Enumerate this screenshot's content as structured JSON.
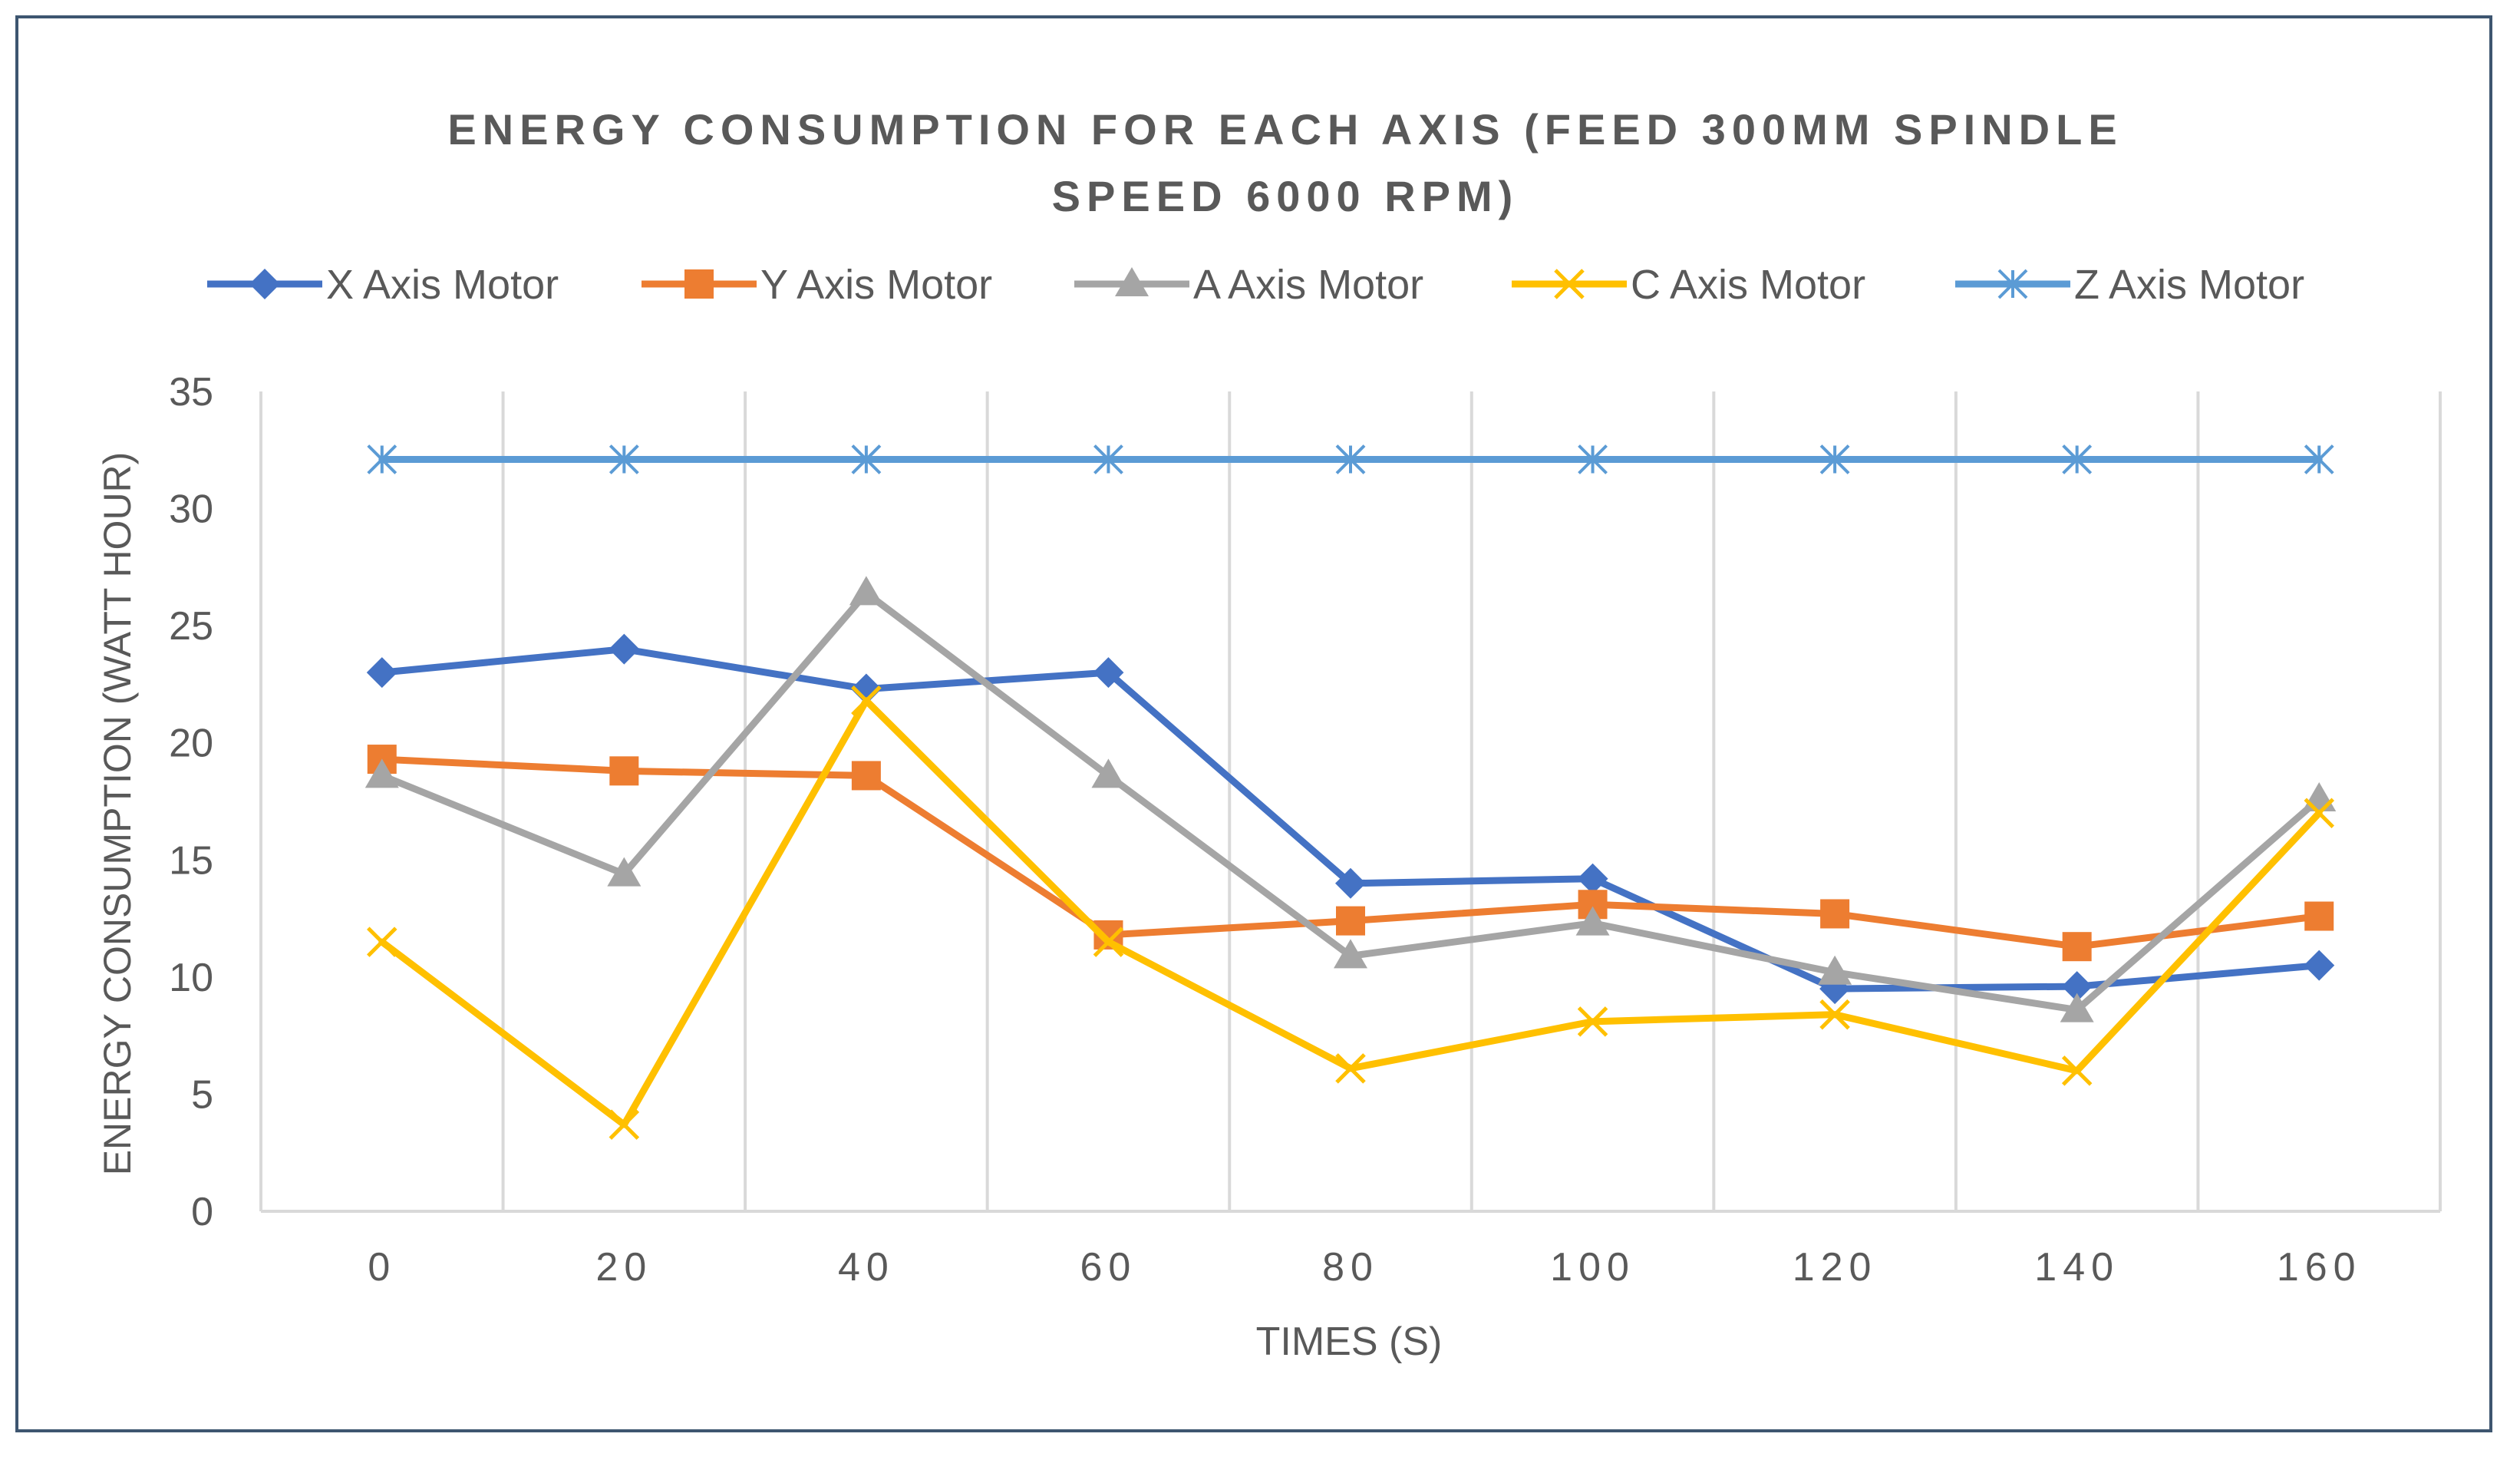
{
  "chart_data": {
    "type": "line",
    "title_lines": [
      "ENERGY CONSUMPTION FOR EACH AXIS (FEED 300MM SPINDLE",
      "SPEED 6000 RPM)"
    ],
    "xlabel": "TIMES (S)",
    "ylabel": "ENERGY CONSUMPTION (WATT HOUR)",
    "categories": [
      "0",
      "20",
      "40",
      "60",
      "80",
      "100",
      "120",
      "140",
      "160"
    ],
    "y_ticks": [
      "0",
      "5",
      "10",
      "15",
      "20",
      "25",
      "30",
      "35"
    ],
    "ylim": [
      0,
      35
    ],
    "grid": "vertical",
    "legend_position": "top",
    "series": [
      {
        "name": "X Axis Motor",
        "color": "#4472c4",
        "marker": "diamond",
        "values": [
          23,
          24,
          22.3,
          23,
          14,
          14.2,
          9.5,
          9.6,
          10.5
        ]
      },
      {
        "name": "Y Axis Motor",
        "color": "#ed7d31",
        "marker": "square",
        "values": [
          19.3,
          18.8,
          18.6,
          11.8,
          12.4,
          13.1,
          12.7,
          11.3,
          12.6
        ]
      },
      {
        "name": "A Axis Motor",
        "color": "#a5a5a5",
        "marker": "triangle",
        "values": [
          18.6,
          14.4,
          26.4,
          18.6,
          10.9,
          12.3,
          10.2,
          8.6,
          17.6
        ]
      },
      {
        "name": "C Axis Motor",
        "color": "#ffc000",
        "marker": "x",
        "values": [
          11.5,
          3.7,
          21.8,
          11.5,
          6.1,
          8.1,
          8.4,
          6,
          17
        ]
      },
      {
        "name": "Z Axis Motor",
        "color": "#5b9bd5",
        "marker": "star",
        "values": [
          32.1,
          32.1,
          32.1,
          32.1,
          32.1,
          32.1,
          32.1,
          32.1,
          32.1
        ]
      }
    ]
  }
}
